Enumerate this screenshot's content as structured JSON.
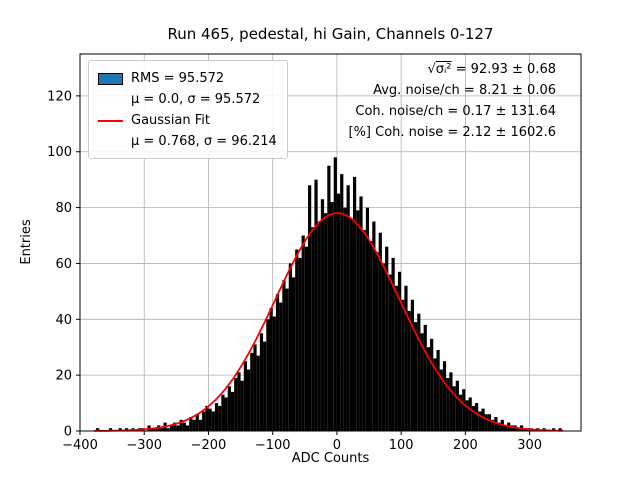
{
  "chart_data": {
    "type": "histogram",
    "title": "Run 465, pedestal, hi Gain, Channels 0-127",
    "xlabel": "ADC Counts",
    "ylabel": "Entries",
    "xlim": [
      -400,
      380
    ],
    "ylim": [
      0,
      135
    ],
    "xticks": [
      -400,
      -300,
      -200,
      -100,
      0,
      100,
      200,
      300
    ],
    "xticklabels": [
      "−400",
      "−300",
      "−200",
      "−100",
      "0",
      "100",
      "200",
      "300"
    ],
    "yticks": [
      0,
      20,
      40,
      60,
      80,
      100,
      120
    ],
    "yticklabels": [
      "0",
      "20",
      "40",
      "60",
      "80",
      "100",
      "120"
    ],
    "grid": true,
    "grid_color": "#b0b0b0",
    "bar_color": "#000000",
    "bins": {
      "start": -375,
      "width": 5,
      "counts": [
        1,
        0,
        0,
        0,
        1,
        0,
        0,
        1,
        0,
        1,
        0,
        1,
        0,
        1,
        1,
        0,
        2,
        1,
        1,
        2,
        1,
        3,
        1,
        2,
        3,
        2,
        4,
        3,
        2,
        5,
        4,
        6,
        4,
        7,
        9,
        8,
        7,
        10,
        9,
        13,
        12,
        16,
        14,
        19,
        21,
        18,
        25,
        22,
        28,
        31,
        27,
        35,
        32,
        40,
        44,
        41,
        49,
        46,
        54,
        51,
        60,
        55,
        65,
        62,
        70,
        66,
        88,
        73,
        90,
        75,
        83,
        78,
        95,
        82,
        98,
        85,
        92,
        80,
        88,
        76,
        91,
        79,
        84,
        72,
        80,
        68,
        75,
        64,
        71,
        60,
        66,
        56,
        62,
        52,
        57,
        47,
        52,
        43,
        47,
        39,
        42,
        35,
        38,
        30,
        33,
        26,
        29,
        22,
        25,
        19,
        21,
        16,
        18,
        13,
        15,
        11,
        12,
        9,
        10,
        7,
        8,
        6,
        6,
        4,
        5,
        3,
        4,
        2,
        3,
        2,
        2,
        1,
        2,
        1,
        1,
        1,
        0,
        1,
        0,
        1,
        0,
        0,
        1,
        0,
        1
      ]
    },
    "fit": {
      "type": "gaussian",
      "label": "Gaussian Fit",
      "mu": 0.768,
      "sigma": 96.214,
      "amplitude": 78,
      "color": "#ff0000",
      "range": [
        -378,
        352
      ]
    },
    "legend": {
      "entries": [
        {
          "swatch": "patch",
          "color": "#1f77b4",
          "line1": "RMS = 95.572",
          "line2": "μ = 0.0, σ = 95.572"
        },
        {
          "swatch": "line",
          "color": "#ff0000",
          "line1": "Gaussian Fit",
          "line2": "μ = 0.768, σ = 96.214"
        }
      ]
    },
    "annotations": {
      "line1_radical": "σᵢ²",
      "line1_rest": " = 92.93 ± 0.68",
      "line2": "Avg. noise/ch = 8.21 ± 0.06",
      "line3": "Coh. noise/ch = 0.17 ± 131.64",
      "line4": "[%] Coh. noise = 2.12 ± 1602.6"
    }
  }
}
